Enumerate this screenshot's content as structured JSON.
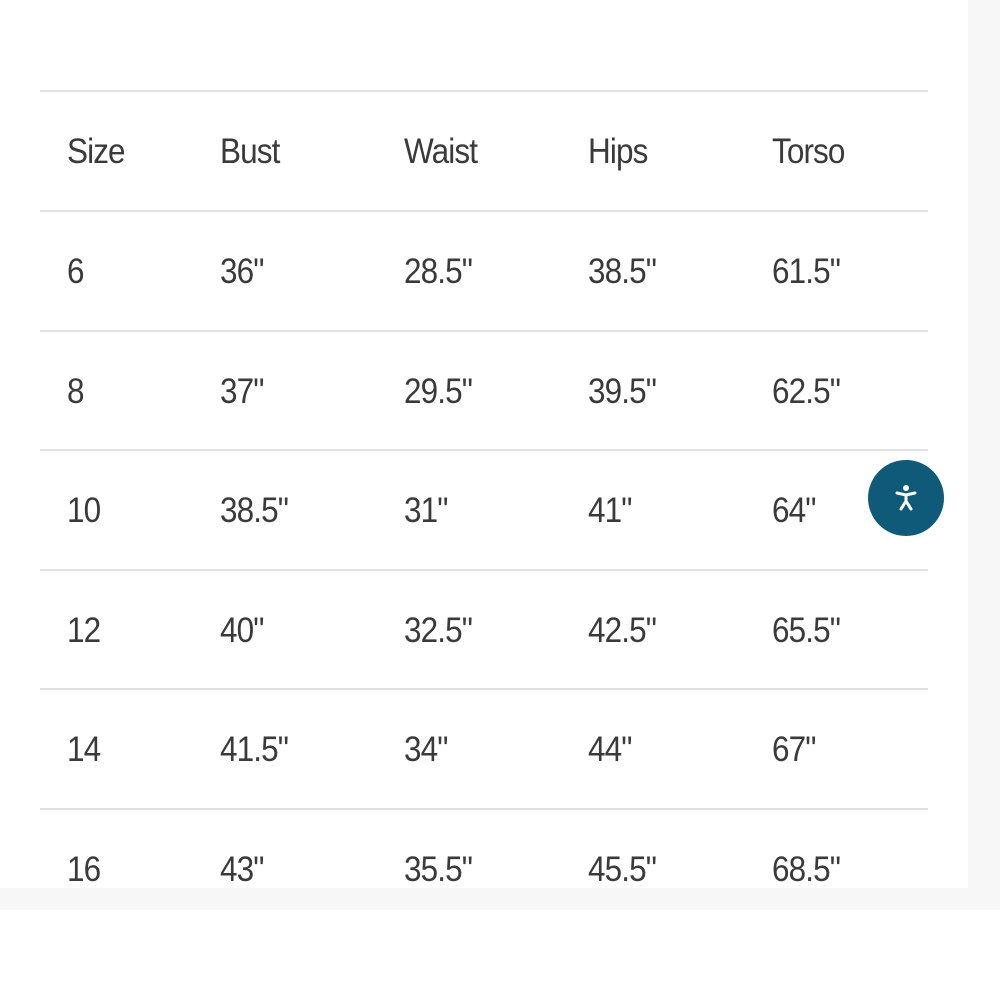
{
  "table": {
    "headers": [
      "Size",
      "Bust",
      "Waist",
      "Hips",
      "Torso"
    ],
    "rows": [
      [
        "6",
        "36\"",
        "28.5\"",
        "38.5\"",
        "61.5\""
      ],
      [
        "8",
        "37\"",
        "29.5\"",
        "39.5\"",
        "62.5\""
      ],
      [
        "10",
        "38.5\"",
        "31\"",
        "41\"",
        "64\""
      ],
      [
        "12",
        "40\"",
        "32.5\"",
        "42.5\"",
        "65.5\""
      ],
      [
        "14",
        "41.5\"",
        "34\"",
        "44\"",
        "67\""
      ],
      [
        "16",
        "43\"",
        "35.5\"",
        "45.5\"",
        "68.5\""
      ]
    ]
  },
  "accessibility_button": {
    "icon": "accessibility-person-icon",
    "color": "#0f5a78"
  }
}
